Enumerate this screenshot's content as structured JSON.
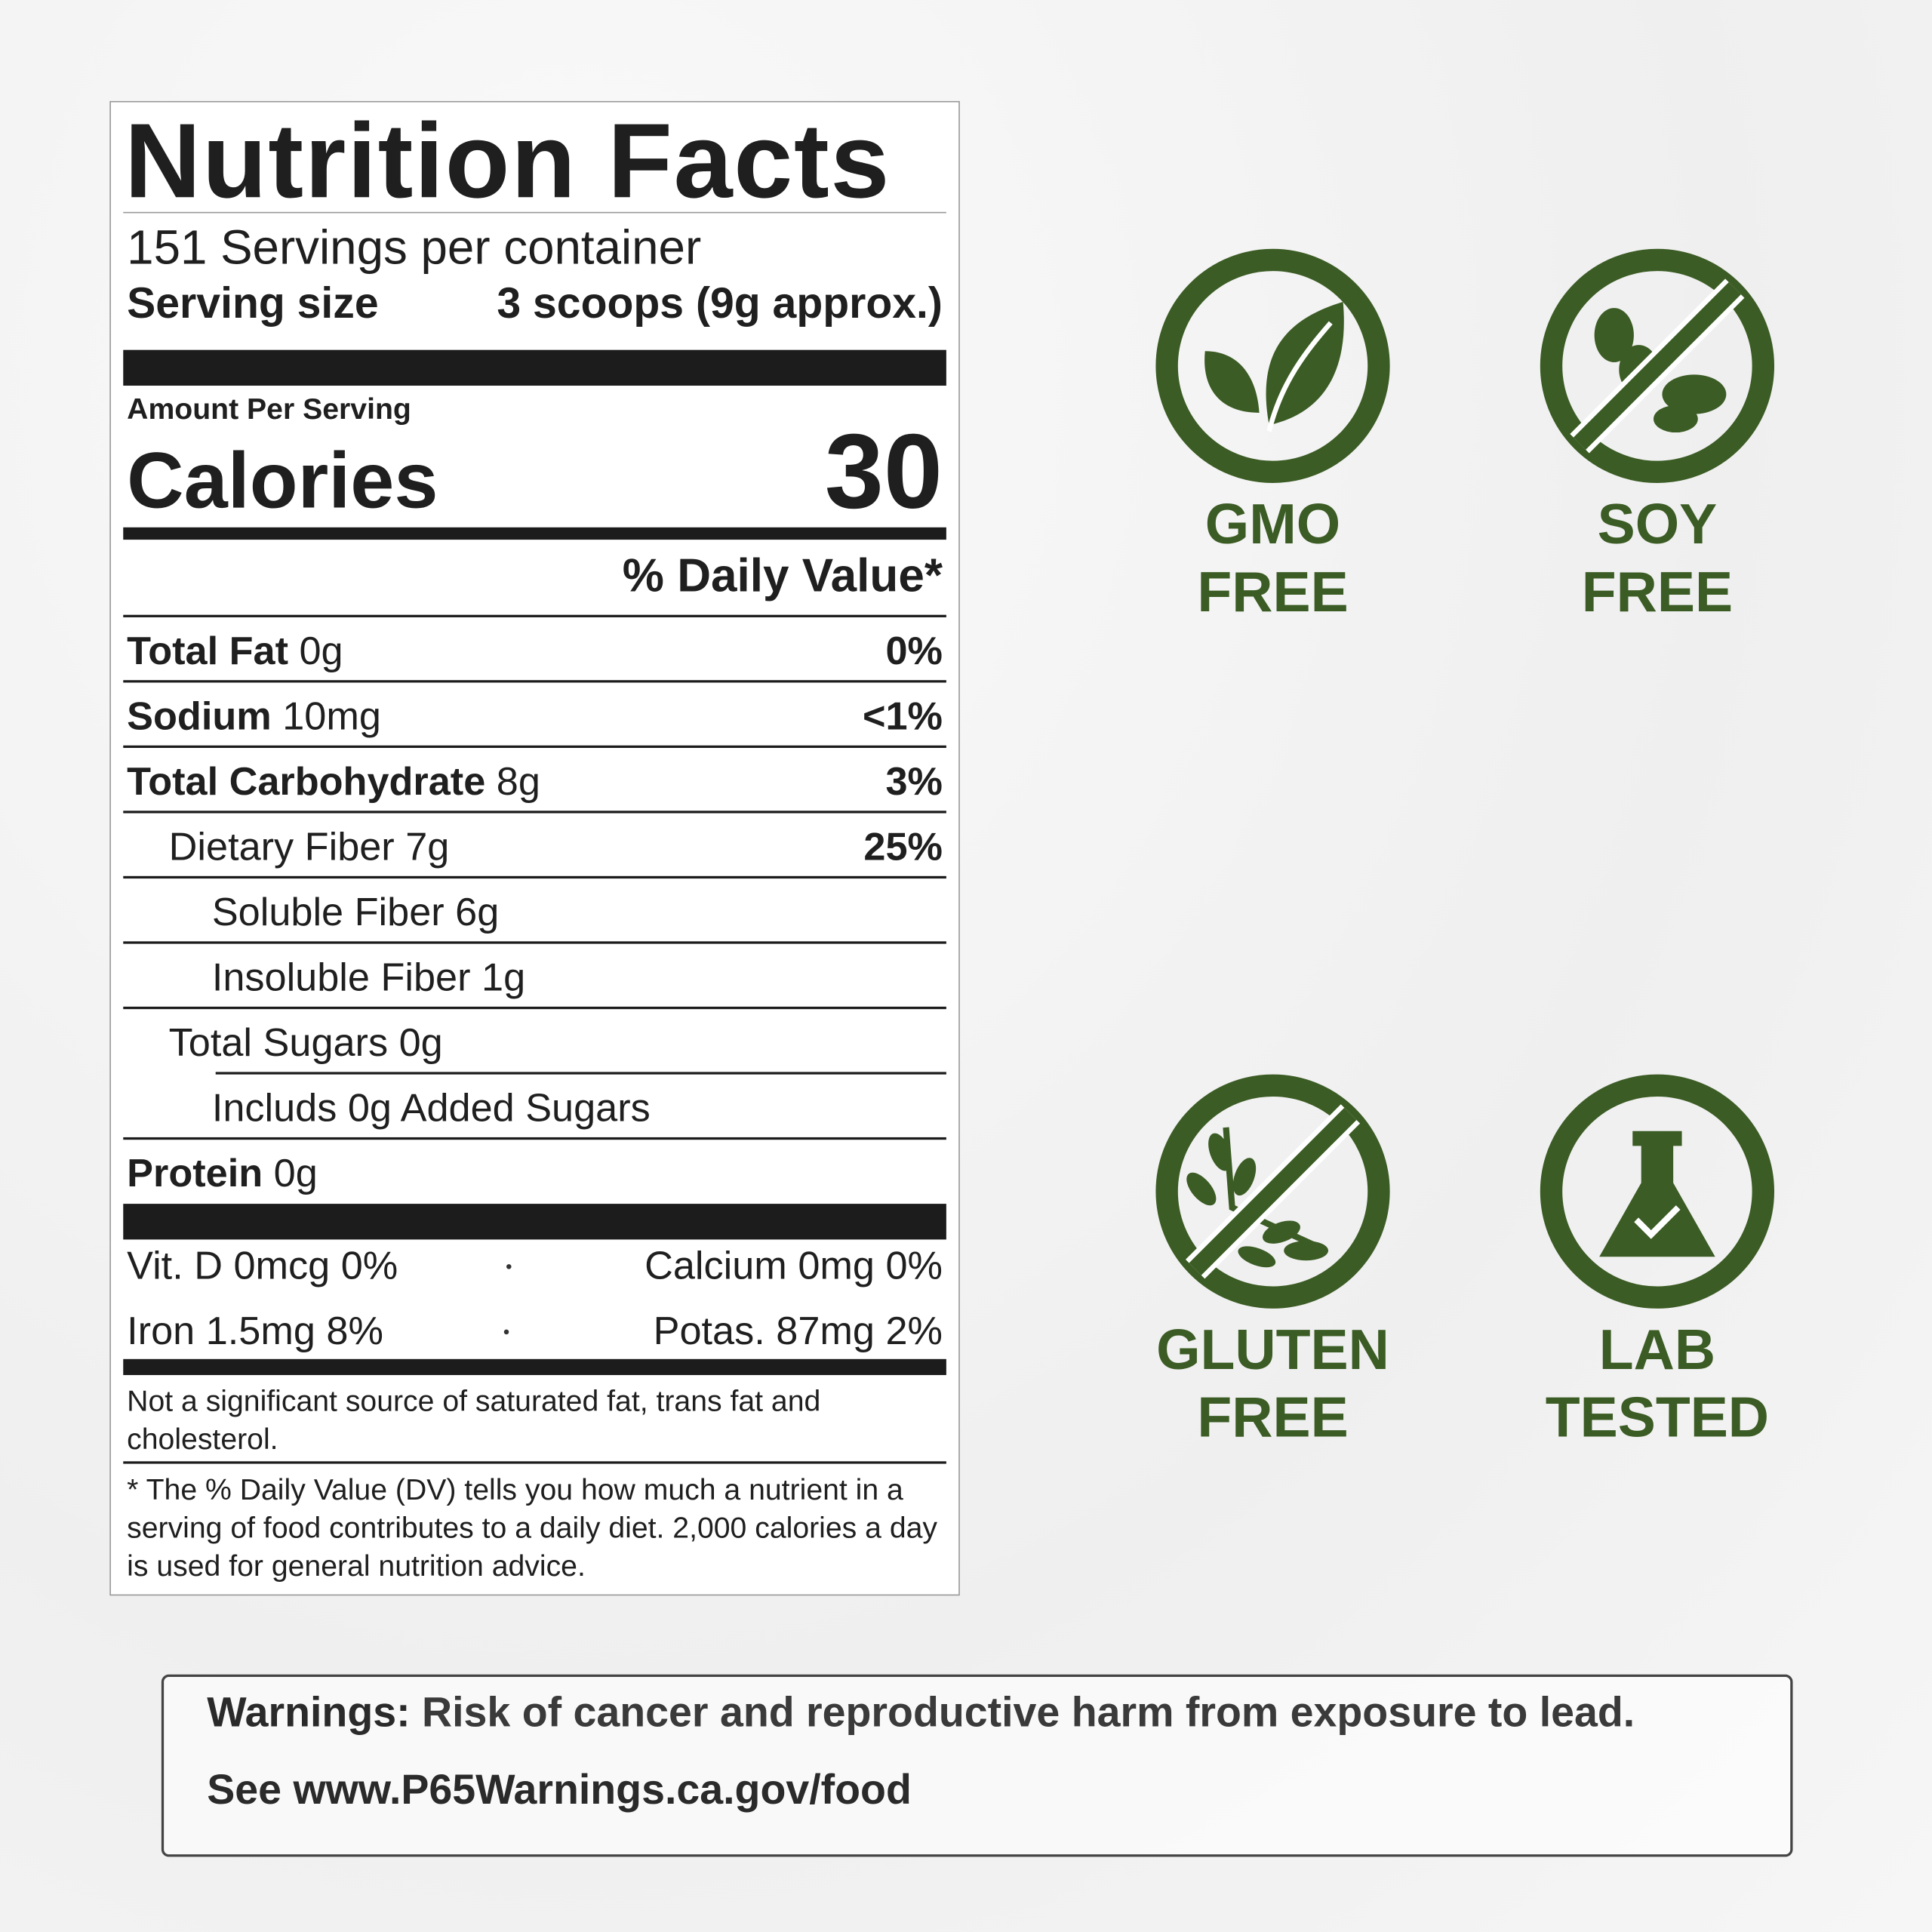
{
  "label": {
    "title": "Nutrition Facts",
    "servings": "151 Servings per container",
    "serving_size_label": "Serving size",
    "serving_size": "3 scoops (9g approx.)",
    "amount_per_serving": "Amount Per Serving",
    "calories_label": "Calories",
    "calories": 30,
    "dv_header": "% Daily Value*",
    "rows": [
      {
        "name": "Total Fat",
        "amount": "0g",
        "dv": "0%"
      },
      {
        "name": "Sodium",
        "amount": "10mg",
        "dv": "<1%"
      },
      {
        "name": "Total Carbohydrate",
        "amount": "8g",
        "dv": "3%"
      },
      {
        "name": "Dietary Fiber 7g",
        "dv": "25%"
      },
      {
        "name": "Soluble Fiber 6g"
      },
      {
        "name": "Insoluble Fiber 1g"
      },
      {
        "name": "Total Sugars 0g"
      },
      {
        "name": "Includs 0g Added Sugars"
      },
      {
        "name": "Protein",
        "amount": "0g"
      }
    ],
    "vitamins": [
      [
        "Vit. D 0mcg 0%",
        "Calcium 0mg 0%"
      ],
      [
        "Iron 1.5mg 8%",
        "Potas. 87mg 2%"
      ]
    ],
    "note": "Not a significant source of saturated fat, trans fat and cholesterol.",
    "footnote": "* The % Daily Value (DV) tells you how much a nutrient in a serving of food contributes to a daily diet. 2,000 calories a day is used for general nutrition advice."
  },
  "badges": [
    {
      "lines": [
        "GMO",
        "FREE"
      ]
    },
    {
      "lines": [
        "SOY",
        "FREE"
      ]
    },
    {
      "lines": [
        "GLUTEN",
        "FREE"
      ]
    },
    {
      "lines": [
        "LAB",
        "TESTED"
      ]
    }
  ],
  "warning": {
    "label": "Warnings:",
    "text": "Risk of cancer and reproductive harm from exposure to lead.",
    "link": "See www.P65Warnings.ca.gov/food"
  }
}
